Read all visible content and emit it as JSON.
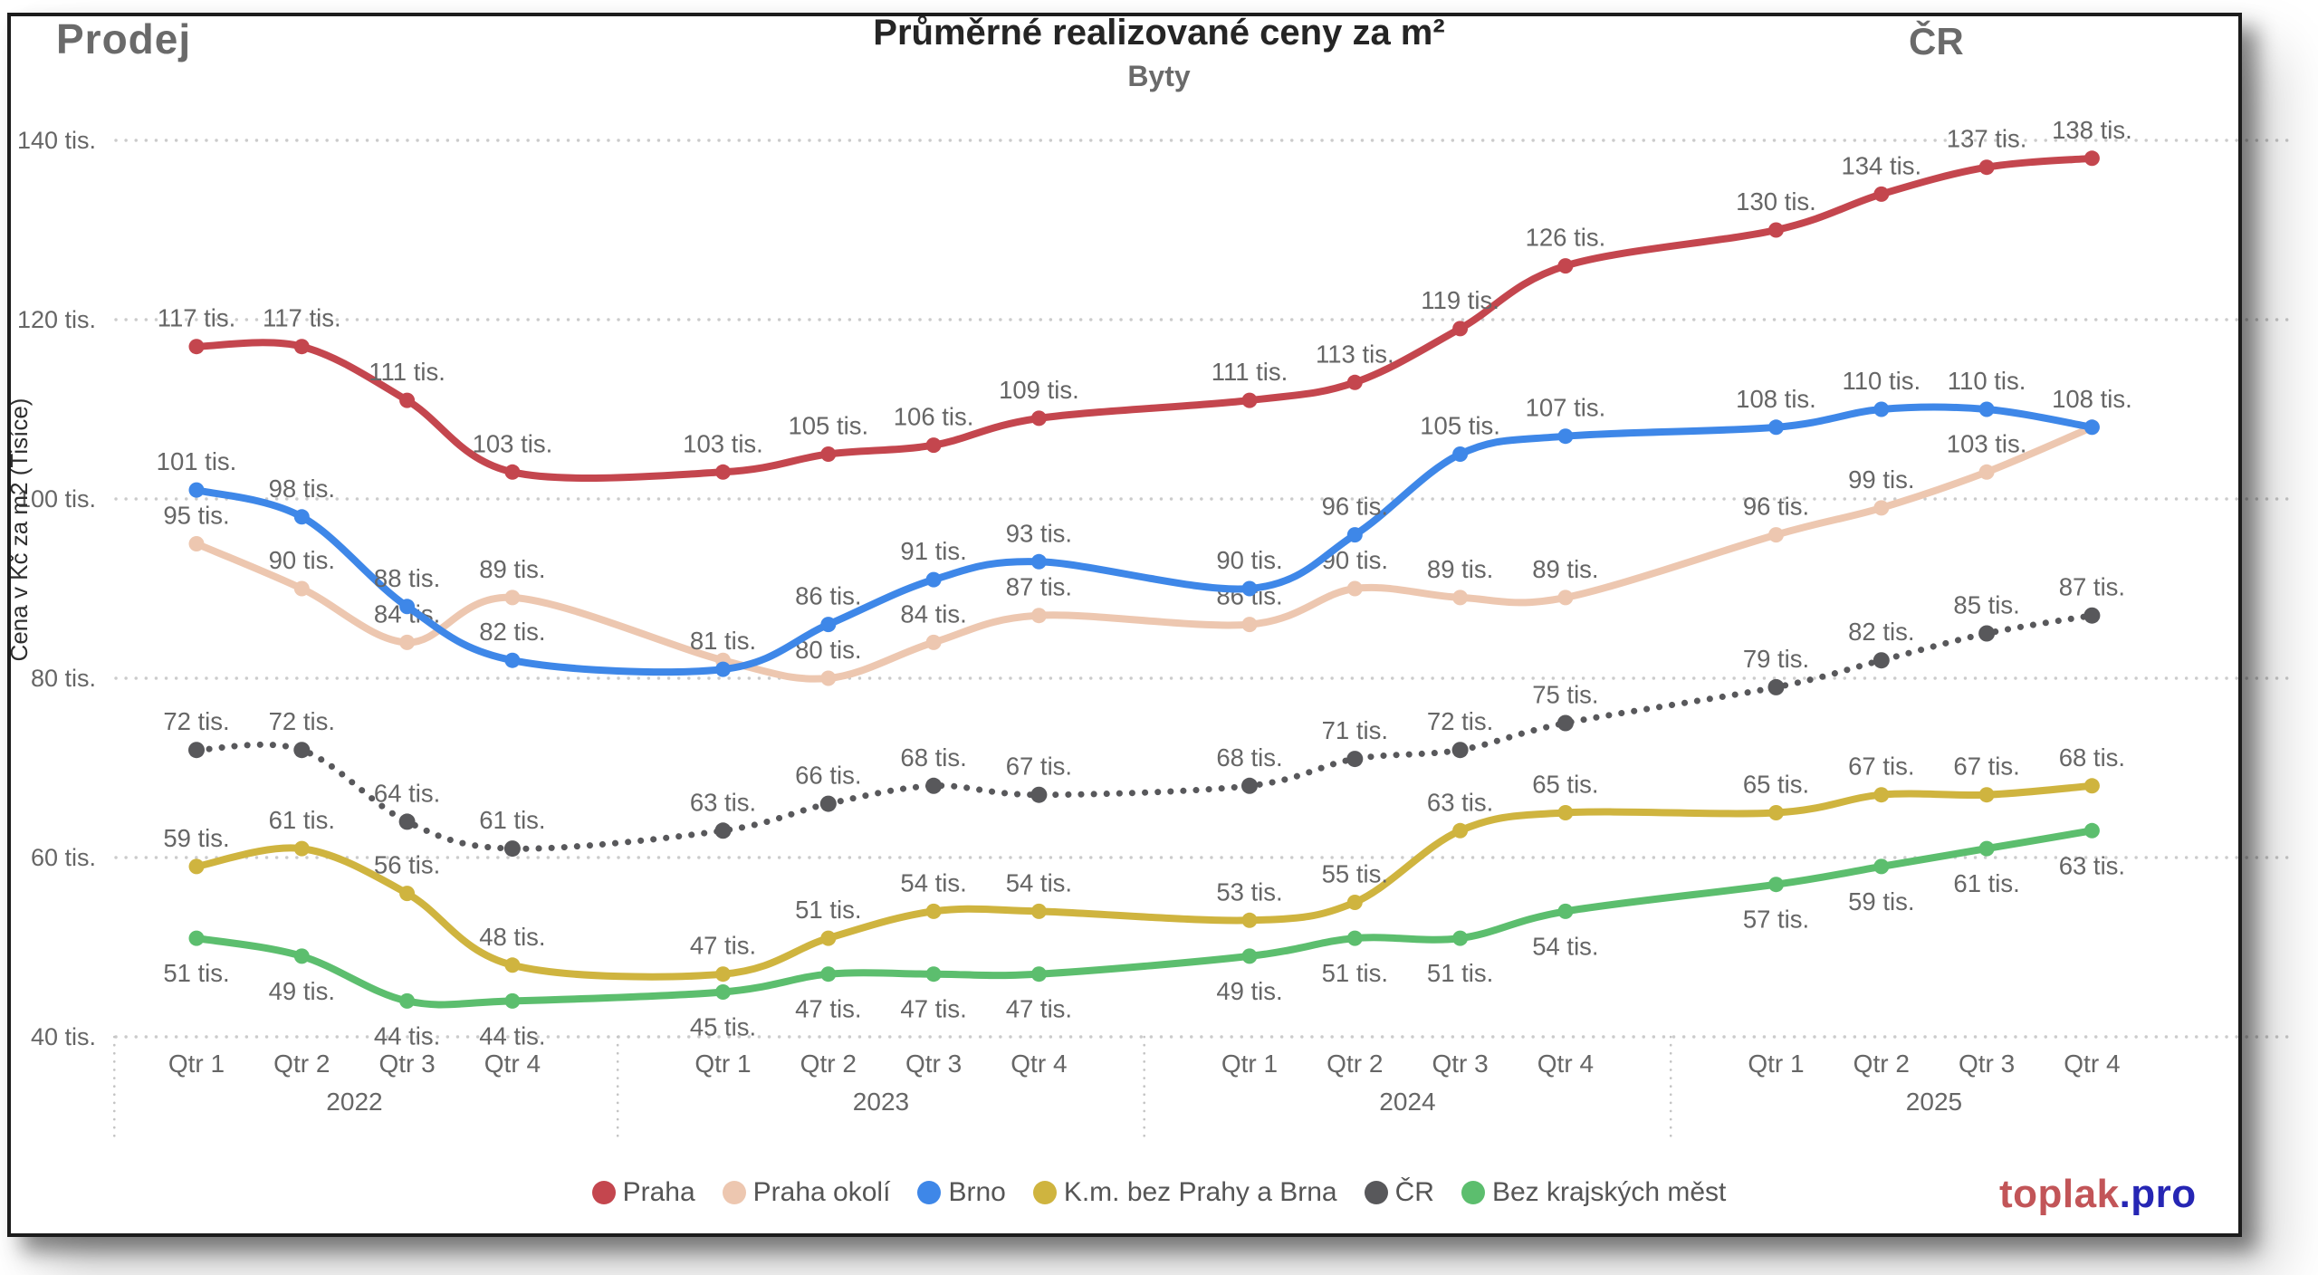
{
  "header": {
    "left_title": "Prodej",
    "right_title": "ČR"
  },
  "logo": {
    "part1": "toplak",
    "part2": ".pro",
    "part1_color": "#C25558",
    "part2_color": "#2626B4"
  },
  "chart_data": {
    "type": "line",
    "title": "Průměrné realizované ceny za m²",
    "subtitle": "Byty",
    "x": {
      "years": [
        {
          "label": "2022",
          "quarters": [
            "Qtr 1",
            "Qtr 2",
            "Qtr 3",
            "Qtr 4"
          ]
        },
        {
          "label": "2023",
          "quarters": [
            "Qtr 1",
            "Qtr 2",
            "Qtr 3",
            "Qtr 4"
          ]
        },
        {
          "label": "2024",
          "quarters": [
            "Qtr 1",
            "Qtr 2",
            "Qtr 3",
            "Qtr 4"
          ]
        },
        {
          "label": "2025",
          "quarters": [
            "Qtr 1",
            "Qtr 2",
            "Qtr 3",
            "Qtr 4"
          ]
        }
      ]
    },
    "y": {
      "title": "Cena v Kč za m2 (Tisíce)",
      "min": 40,
      "max": 140,
      "tick_step": 20,
      "tick_suffix": " tis.",
      "grid": "dotted"
    },
    "label_suffix": " tis.",
    "legend_position": "bottom",
    "series": [
      {
        "name": "Praha",
        "color": "#C4464E",
        "style": "solid",
        "label_side": "above",
        "hidden_labels": [],
        "values": [
          117,
          117,
          111,
          103,
          103,
          105,
          106,
          109,
          111,
          113,
          119,
          126,
          130,
          134,
          137,
          138
        ]
      },
      {
        "name": "Praha okolí",
        "color": "#EDC7B0",
        "style": "solid",
        "label_side": "above",
        "hidden_labels": [
          4,
          15
        ],
        "values": [
          95,
          90,
          84,
          89,
          82,
          80,
          84,
          87,
          86,
          90,
          89,
          89,
          96,
          99,
          103,
          108
        ]
      },
      {
        "name": "Brno",
        "color": "#3E87E8",
        "style": "solid",
        "label_side": "above",
        "hidden_labels": [],
        "values": [
          101,
          98,
          88,
          82,
          81,
          86,
          91,
          93,
          90,
          96,
          105,
          107,
          108,
          110,
          110,
          108
        ]
      },
      {
        "name": "K.m. bez Prahy a Brna",
        "color": "#CFB43F",
        "style": "solid",
        "label_side": "above",
        "hidden_labels": [],
        "values": [
          59,
          61,
          56,
          48,
          47,
          51,
          54,
          54,
          53,
          55,
          63,
          65,
          65,
          67,
          67,
          68
        ]
      },
      {
        "name": "ČR",
        "color": "#58585B",
        "style": "dotted",
        "label_side": "above",
        "hidden_labels": [],
        "values": [
          72,
          72,
          64,
          61,
          63,
          66,
          68,
          67,
          68,
          71,
          72,
          75,
          79,
          82,
          85,
          87
        ]
      },
      {
        "name": "Bez krajských měst",
        "color": "#5CBE6E",
        "style": "solid",
        "label_side": "below",
        "hidden_labels": [],
        "values": [
          51,
          49,
          44,
          44,
          45,
          47,
          47,
          47,
          49,
          51,
          51,
          54,
          57,
          59,
          61,
          63
        ]
      }
    ]
  }
}
